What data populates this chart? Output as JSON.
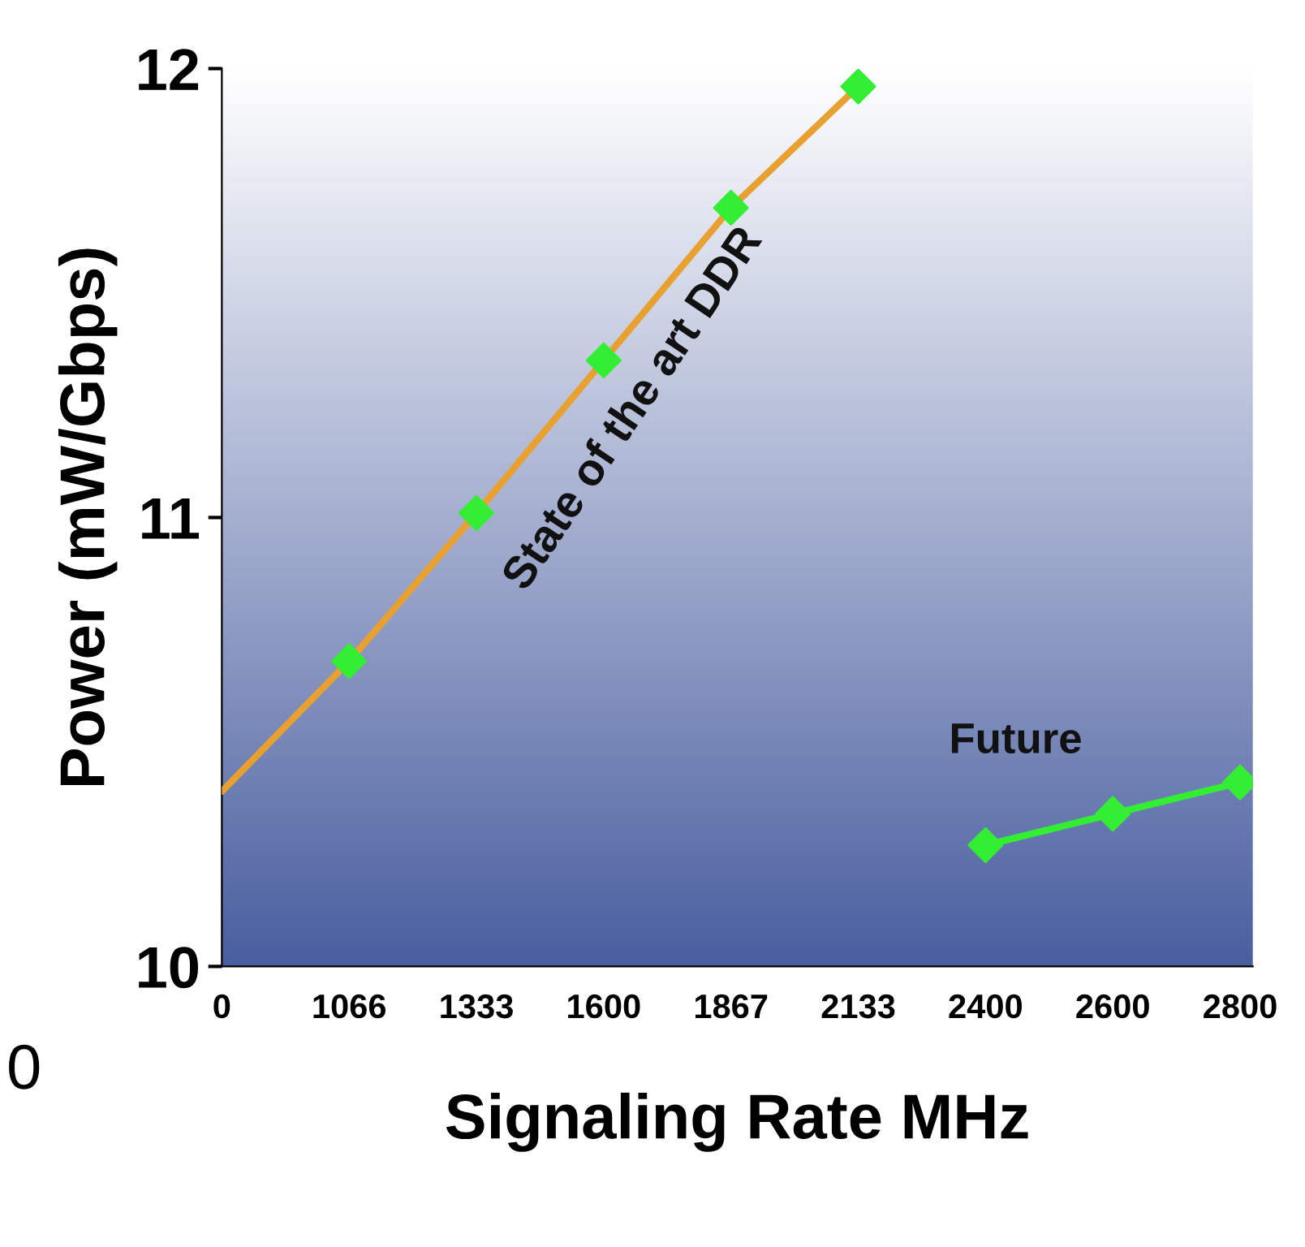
{
  "chart_data": {
    "type": "line",
    "xlabel": "Signaling Rate MHz",
    "ylabel": "Power (mW/Gbps)",
    "categories": [
      "0",
      "1066",
      "1333",
      "1600",
      "1867",
      "2133",
      "2400",
      "2600",
      "2800"
    ],
    "ylim": [
      10,
      12
    ],
    "yticks": [
      10,
      11,
      12
    ],
    "grid": false,
    "legend": false,
    "marker": "diamond",
    "line_style": "solid",
    "series": [
      {
        "values": [
          10.39,
          10.68,
          11.01,
          11.35,
          11.69,
          11.96,
          null,
          null,
          null
        ],
        "color": "#e8a030",
        "colors": [
          null,
          "#33ee33",
          "#33ee33",
          "#33ee33",
          "#33ee33",
          "#33ee33",
          null,
          null,
          null
        ]
      },
      {
        "values": [
          null,
          null,
          null,
          null,
          null,
          null,
          10.27,
          10.34,
          10.41
        ],
        "color": "#33ee33",
        "colors": [
          null,
          null,
          null,
          null,
          null,
          null,
          "#33ee33",
          "#33ee33",
          "#33ee33"
        ]
      }
    ],
    "annotations": [
      "State of the art DDR",
      "Future",
      "0"
    ]
  }
}
